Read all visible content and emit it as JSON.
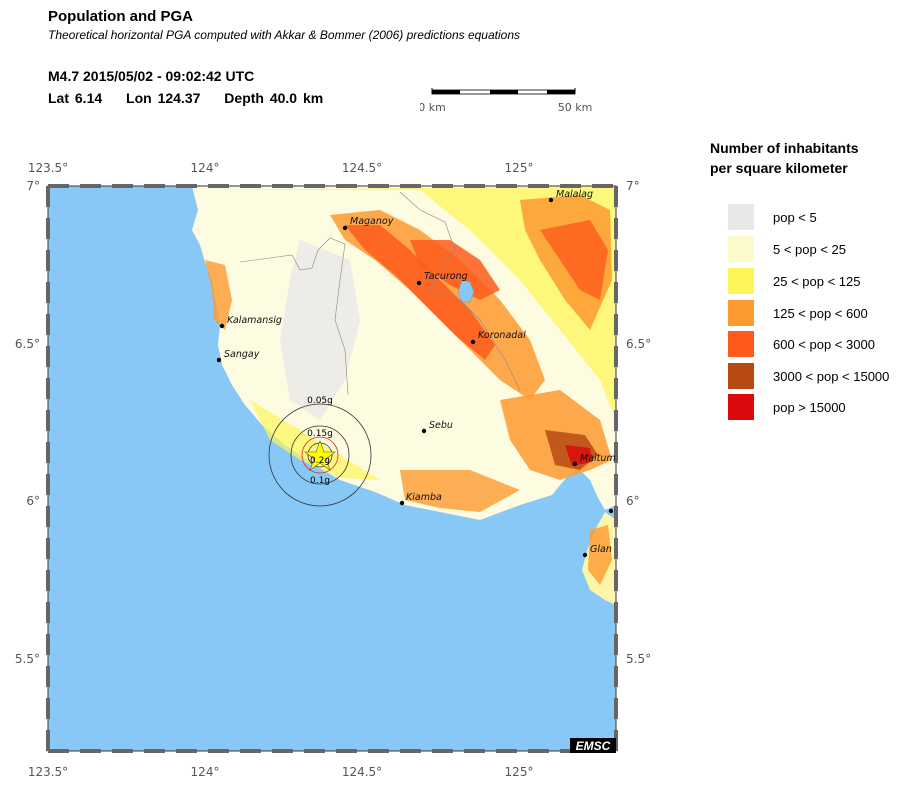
{
  "header": {
    "title": "Population and PGA",
    "subtitle": "Theoretical horizontal PGA computed with Akkar & Bommer (2006) predictions equations",
    "event": "M4.7  2015/05/02 - 09:02:42 UTC",
    "lat": "Lat  6.14",
    "lon": "Lon 124.37",
    "depth": "Depth  40.0 km"
  },
  "scale": {
    "start_label": "0 km",
    "end_label": "50 km"
  },
  "axes": {
    "x_ticks": [
      "123.5°",
      "124°",
      "124.5°",
      "125°"
    ],
    "y_ticks": [
      "7°",
      "6.5°",
      "6°",
      "5.5°"
    ]
  },
  "colors": {
    "sea": "#87c8f7",
    "land_base": "#fdfbe0",
    "frame": "#555555"
  },
  "towns": [
    "Maganoy",
    "Tacurong",
    "Koronadal",
    "Kalamansig",
    "Sangay",
    "Sebu",
    "Kiamba",
    "Maitum",
    "Glan",
    "Malalag"
  ],
  "pga_labels": [
    "0.05g",
    "0.15g",
    "0.2g",
    "0.1g"
  ],
  "badge": "EMSC",
  "legend": {
    "title_line1": "Number of inhabitants",
    "title_line2": "per square kilometer",
    "items": [
      {
        "label": "pop < 5",
        "color": "#e8e8e8"
      },
      {
        "label": "5 < pop < 25",
        "color": "#fdfacc"
      },
      {
        "label": "25 < pop < 125",
        "color": "#fcf65a"
      },
      {
        "label": "125 < pop < 600",
        "color": "#fd9a30"
      },
      {
        "label": "600 < pop < 3000",
        "color": "#fd5a1c"
      },
      {
        "label": "3000 < pop < 15000",
        "color": "#b84a14"
      },
      {
        "label": "pop > 15000",
        "color": "#dc0a0a"
      }
    ]
  }
}
